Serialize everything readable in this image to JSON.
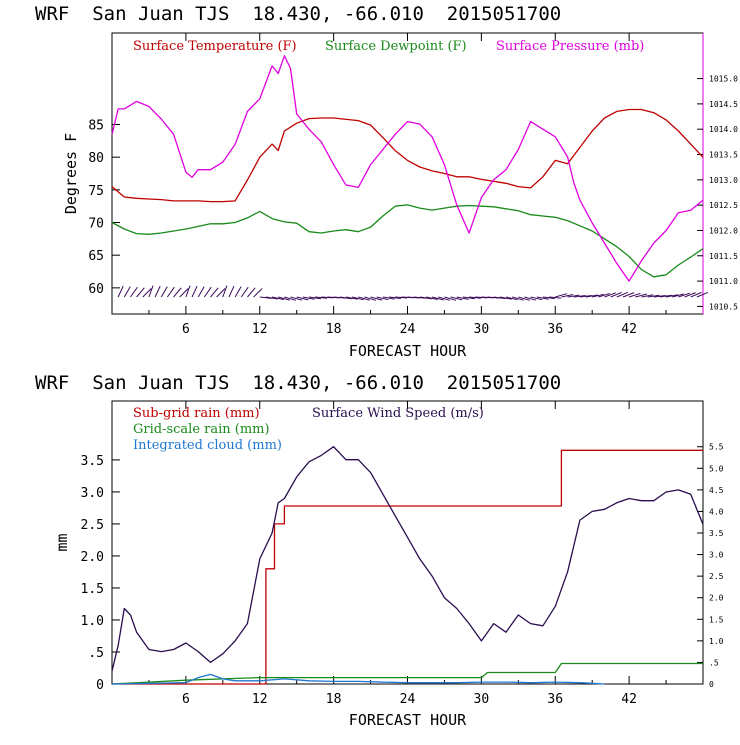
{
  "chart_data": [
    {
      "type": "line",
      "title": "WRF  San Juan TJS  18.430, -66.010  2015051700",
      "xlabel": "FORECAST HOUR",
      "ylabel": "Degrees F",
      "xlim": [
        0,
        48
      ],
      "ylim": [
        56,
        99
      ],
      "y2lim": [
        1010.35,
        1015.9
      ],
      "x_ticks": [
        "6",
        "12",
        "18",
        "24",
        "30",
        "36",
        "42"
      ],
      "y_ticks": [
        "60",
        "65",
        "70",
        "75",
        "80",
        "85"
      ],
      "y2_ticks": [
        "1010.5",
        "1011.0",
        "1011.5",
        "1012.0",
        "1012.5",
        "1013.0",
        "1013.5",
        "1014.0",
        "1014.5",
        "1015.0"
      ],
      "legend_placement": "top-left",
      "wind_barbs_row": true,
      "series": [
        {
          "name": "Surface Temperature (F)",
          "color": "#c00000",
          "axis": "left",
          "x": [
            0,
            1,
            2,
            3,
            4,
            5,
            6,
            7,
            8,
            9,
            10,
            11,
            12,
            13,
            13.5,
            14,
            15,
            16,
            17,
            18,
            20,
            21,
            22,
            23,
            24,
            25,
            26,
            27,
            28,
            29,
            30,
            31,
            32,
            33,
            34,
            35,
            36,
            37,
            38,
            39,
            40,
            41,
            42,
            43,
            44,
            45,
            46,
            47,
            48
          ],
          "values": [
            75.5,
            73.9,
            73.7,
            73.6,
            73.5,
            73.3,
            73.3,
            73.3,
            73.2,
            73.2,
            73.3,
            76.5,
            80,
            82,
            81,
            84,
            85.2,
            85.9,
            86,
            86,
            85.6,
            84.9,
            83,
            81,
            79.5,
            78.5,
            77.9,
            77.5,
            77,
            77,
            76.6,
            76.3,
            76,
            75.5,
            75.3,
            77,
            79.5,
            79,
            81.5,
            84,
            86,
            87,
            87.3,
            87.3,
            86.8,
            85.7,
            84,
            82,
            80
          ]
        },
        {
          "name": "Surface Dewpoint (F)",
          "color": "#1a8a1a",
          "axis": "left",
          "x": [
            0,
            1,
            2,
            3,
            4,
            5,
            6,
            7,
            8,
            9,
            10,
            11,
            12,
            13,
            14,
            15,
            16,
            17,
            18,
            19,
            20,
            21,
            22,
            23,
            24,
            25,
            26,
            27,
            28,
            29,
            30,
            31,
            32,
            33,
            34,
            35,
            36,
            37,
            38,
            39,
            40,
            41,
            42,
            43,
            44,
            45,
            46,
            47,
            48
          ],
          "values": [
            70,
            69,
            68.3,
            68.2,
            68.4,
            68.7,
            69,
            69.4,
            69.8,
            69.8,
            70,
            70.7,
            71.7,
            70.6,
            70.1,
            69.9,
            68.6,
            68.4,
            68.7,
            68.9,
            68.6,
            69.3,
            71,
            72.5,
            72.7,
            72.2,
            71.9,
            72.2,
            72.5,
            72.6,
            72.5,
            72.4,
            72.1,
            71.8,
            71.2,
            71,
            70.8,
            70.3,
            69.5,
            68.7,
            67.5,
            66.3,
            64.8,
            62.8,
            61.7,
            62,
            63.5,
            64.7,
            66
          ]
        },
        {
          "name": "Surface Pressure (mb)",
          "color": "#e000e0",
          "axis": "right",
          "x": [
            0,
            0.5,
            1,
            2,
            3,
            4,
            5,
            6,
            6.5,
            7,
            8,
            9,
            10,
            11,
            12,
            13,
            13.5,
            14,
            14.5,
            15,
            16,
            17,
            18,
            19,
            20,
            21,
            22,
            23,
            24,
            25,
            26,
            27,
            28,
            29,
            30,
            31,
            32,
            33,
            34,
            35,
            36,
            37,
            37.5,
            38,
            39,
            40,
            41,
            42,
            43,
            44,
            45,
            46,
            47,
            48
          ],
          "values": [
            1013.9,
            1014.4,
            1014.4,
            1014.55,
            1014.45,
            1014.2,
            1013.9,
            1013.15,
            1013.05,
            1013.2,
            1013.2,
            1013.35,
            1013.7,
            1014.35,
            1014.6,
            1015.25,
            1015.1,
            1015.45,
            1015.2,
            1014.3,
            1014.0,
            1013.75,
            1013.3,
            1012.9,
            1012.85,
            1013.3,
            1013.6,
            1013.9,
            1014.15,
            1014.1,
            1013.85,
            1013.3,
            1012.5,
            1011.95,
            1012.65,
            1013.0,
            1013.2,
            1013.6,
            1014.15,
            1014.0,
            1013.85,
            1013.45,
            1012.95,
            1012.6,
            1012.15,
            1011.75,
            1011.35,
            1011.0,
            1011.4,
            1011.75,
            1012.0,
            1012.35,
            1012.4,
            1012.6
          ]
        }
      ]
    },
    {
      "type": "line",
      "title": "WRF  San Juan TJS  18.430, -66.010  2015051700",
      "xlabel": "FORECAST HOUR",
      "ylabel": "mm",
      "xlim": [
        0,
        48
      ],
      "ylim": [
        0,
        4.42
      ],
      "y2lim": [
        0,
        6.56
      ],
      "x_ticks": [
        "6",
        "12",
        "18",
        "24",
        "30",
        "36",
        "42"
      ],
      "y_ticks": [
        "0",
        ".5",
        "1.0",
        "1.5",
        "2.0",
        "2.5",
        "3.0",
        "3.5"
      ],
      "y2_ticks": [
        "0",
        ".5",
        "1.0",
        "1.5",
        "2.0",
        "2.5",
        "3.0",
        "3.5",
        "4.0",
        "4.5",
        "5.0",
        "5.5"
      ],
      "legend_placement": "top-left",
      "series": [
        {
          "name": "Sub-grid rain (mm)",
          "color": "#c00000",
          "axis": "left",
          "step": true,
          "x": [
            0,
            12.5,
            12.5,
            13.2,
            13.2,
            14.0,
            14.0,
            36.5,
            36.5,
            48
          ],
          "values": [
            0,
            0,
            1.8,
            1.8,
            2.5,
            2.5,
            2.78,
            2.78,
            3.65,
            3.65
          ]
        },
        {
          "name": "Surface Wind Speed (m/s)",
          "color": "#2a0d50",
          "axis": "right",
          "x": [
            0,
            0.5,
            1,
            1.5,
            2,
            3,
            4,
            5,
            6,
            7,
            8,
            9,
            10,
            11,
            12,
            13,
            13.5,
            14,
            15,
            16,
            17,
            18,
            19,
            20,
            21,
            22,
            23,
            24,
            25,
            26,
            27,
            28,
            29,
            30,
            31,
            32,
            33,
            34,
            35,
            36,
            37,
            38,
            39,
            40,
            41,
            42,
            43,
            44,
            45,
            46,
            47,
            48
          ],
          "values": [
            0.3,
            0.9,
            1.75,
            1.6,
            1.2,
            0.8,
            0.75,
            0.8,
            0.95,
            0.75,
            0.5,
            0.7,
            1.0,
            1.4,
            2.9,
            3.5,
            4.2,
            4.3,
            4.8,
            5.15,
            5.3,
            5.5,
            5.2,
            5.2,
            4.9,
            4.4,
            3.9,
            3.4,
            2.9,
            2.5,
            2.0,
            1.75,
            1.4,
            1.0,
            1.4,
            1.2,
            1.6,
            1.4,
            1.35,
            1.8,
            2.6,
            3.8,
            4.0,
            4.05,
            4.2,
            4.3,
            4.25,
            4.25,
            4.45,
            4.5,
            4.4,
            3.7
          ]
        },
        {
          "name": "Grid-scale rain (mm)",
          "color": "#1a8a1a",
          "axis": "left",
          "step": true,
          "x": [
            0,
            6,
            12,
            30,
            30.5,
            36,
            36.5,
            48
          ],
          "values": [
            0,
            0.06,
            0.1,
            0.1,
            0.18,
            0.18,
            0.32,
            0.32
          ]
        },
        {
          "name": "Integrated cloud (mm)",
          "color": "#1f77d0",
          "axis": "left",
          "x": [
            0,
            6,
            7,
            8,
            9,
            10,
            12,
            14,
            16,
            18,
            20,
            22,
            24,
            26,
            28,
            30,
            32,
            34,
            36,
            38,
            40
          ],
          "values": [
            0,
            0.02,
            0.1,
            0.15,
            0.08,
            0.05,
            0.05,
            0.08,
            0.05,
            0.04,
            0.04,
            0.03,
            0.02,
            0.02,
            0.02,
            0.03,
            0.03,
            0.02,
            0.03,
            0.02,
            0
          ]
        }
      ]
    }
  ]
}
